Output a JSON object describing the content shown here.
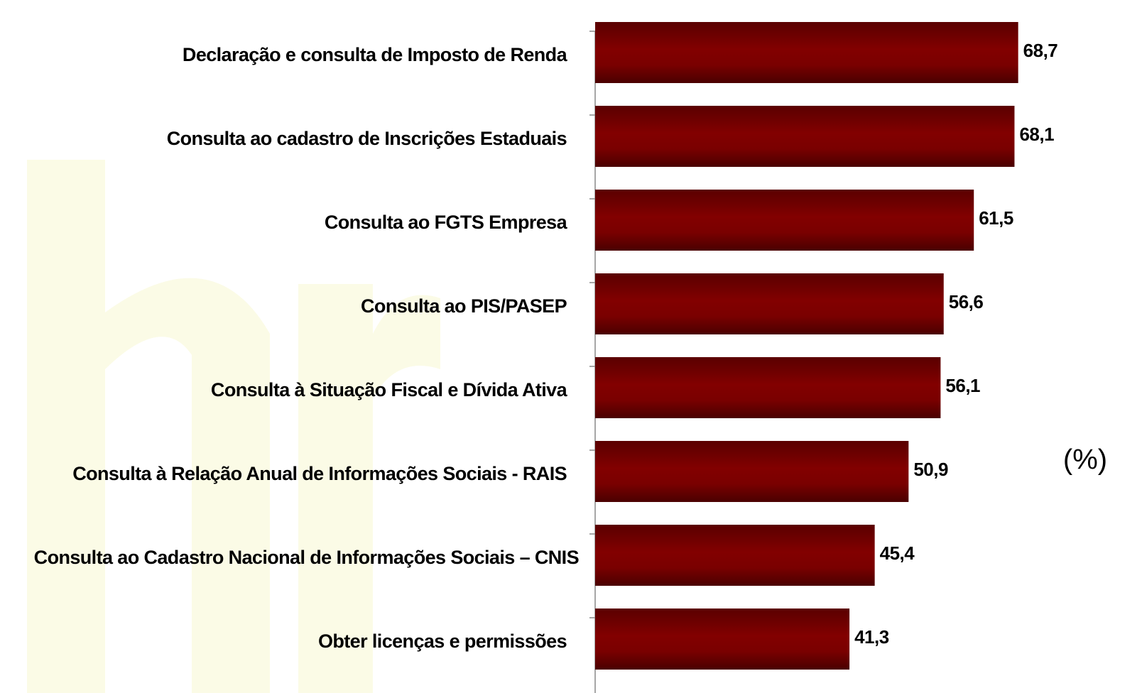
{
  "chart_data": {
    "type": "bar",
    "orientation": "horizontal",
    "categories": [
      "Declaração e consulta de Imposto de Renda",
      "Consulta ao cadastro de Inscrições Estaduais",
      "Consulta ao FGTS Empresa",
      "Consulta ao PIS/PASEP",
      "Consulta à Situação Fiscal e Dívida Ativa",
      "Consulta à Relação Anual de Informações Sociais - RAIS",
      "Consulta ao Cadastro Nacional de Informações Sociais – CNIS",
      "Obter licenças e permissões"
    ],
    "values": [
      68.7,
      68.1,
      61.5,
      56.6,
      56.1,
      50.9,
      45.4,
      41.3
    ],
    "value_labels": [
      "68,7",
      "68,1",
      "61,5",
      "56,6",
      "56,1",
      "50,9",
      "45,4",
      "41,3"
    ],
    "color": "#7a0000",
    "xlim": [
      0,
      88
    ],
    "unit_label": "(%)"
  }
}
